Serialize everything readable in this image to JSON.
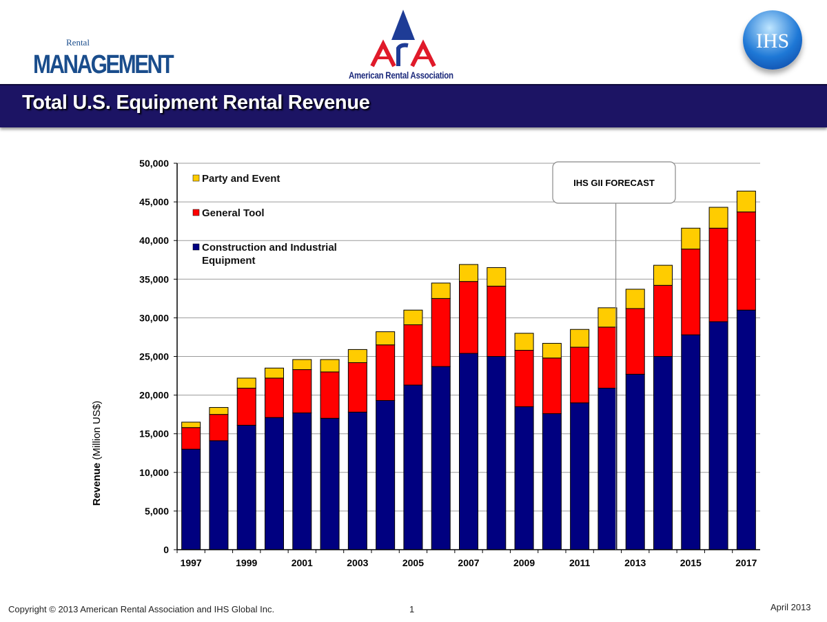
{
  "header": {
    "title": "Total U.S. Equipment Rental Revenue",
    "logos": {
      "rental_management": {
        "small": "Rental",
        "big": "MANAGEMENT"
      },
      "ara": {
        "mark": "ARA",
        "name": "American Rental Association"
      },
      "ihs": "IHS"
    },
    "band_color": "#1c1464"
  },
  "footer": {
    "copyright": "Copyright © 2013 American Rental Association and IHS Global Inc.",
    "page": "1",
    "date": "April 2013"
  },
  "chart_data": {
    "type": "bar",
    "stacked": true,
    "title": "",
    "ylabel_bold": "Revenue",
    "ylabel_rest": " (Million US$)",
    "xlabel": "",
    "ylim": [
      0,
      50000
    ],
    "yticks": [
      "0",
      "5,000",
      "10,000",
      "15,000",
      "20,000",
      "25,000",
      "30,000",
      "35,000",
      "40,000",
      "45,000",
      "50,000"
    ],
    "grid": true,
    "legend_placement": "top-left",
    "categories": [
      1997,
      1998,
      1999,
      2000,
      2001,
      2002,
      2003,
      2004,
      2005,
      2006,
      2007,
      2008,
      2009,
      2010,
      2011,
      2012,
      2013,
      2014,
      2015,
      2016,
      2017
    ],
    "xtick_labels": [
      "1997",
      "1999",
      "2001",
      "2003",
      "2005",
      "2007",
      "2009",
      "2011",
      "2013",
      "2015",
      "2017"
    ],
    "series": [
      {
        "name": "Construction and Industrial Equipment",
        "color": "#000080",
        "values": [
          13000,
          14100,
          16100,
          17100,
          17700,
          17000,
          17800,
          19300,
          21300,
          23700,
          25400,
          25000,
          18500,
          17600,
          19000,
          20900,
          22700,
          25000,
          27800,
          29500,
          31000
        ]
      },
      {
        "name": "General Tool",
        "color": "#ff0000",
        "values": [
          2800,
          3400,
          4800,
          5100,
          5600,
          6000,
          6400,
          7200,
          7800,
          8800,
          9300,
          9100,
          7300,
          7200,
          7200,
          7900,
          8500,
          9200,
          11100,
          12100,
          12700
        ]
      },
      {
        "name": "Party and Event",
        "color": "#ffcc00",
        "values": [
          700,
          900,
          1300,
          1300,
          1300,
          1600,
          1700,
          1700,
          1900,
          2000,
          2200,
          2400,
          2200,
          1900,
          2300,
          2500,
          2500,
          2600,
          2700,
          2700,
          2700
        ]
      }
    ],
    "annotation": {
      "text": "IHS GII FORECAST",
      "between": [
        2012,
        2013
      ]
    }
  }
}
